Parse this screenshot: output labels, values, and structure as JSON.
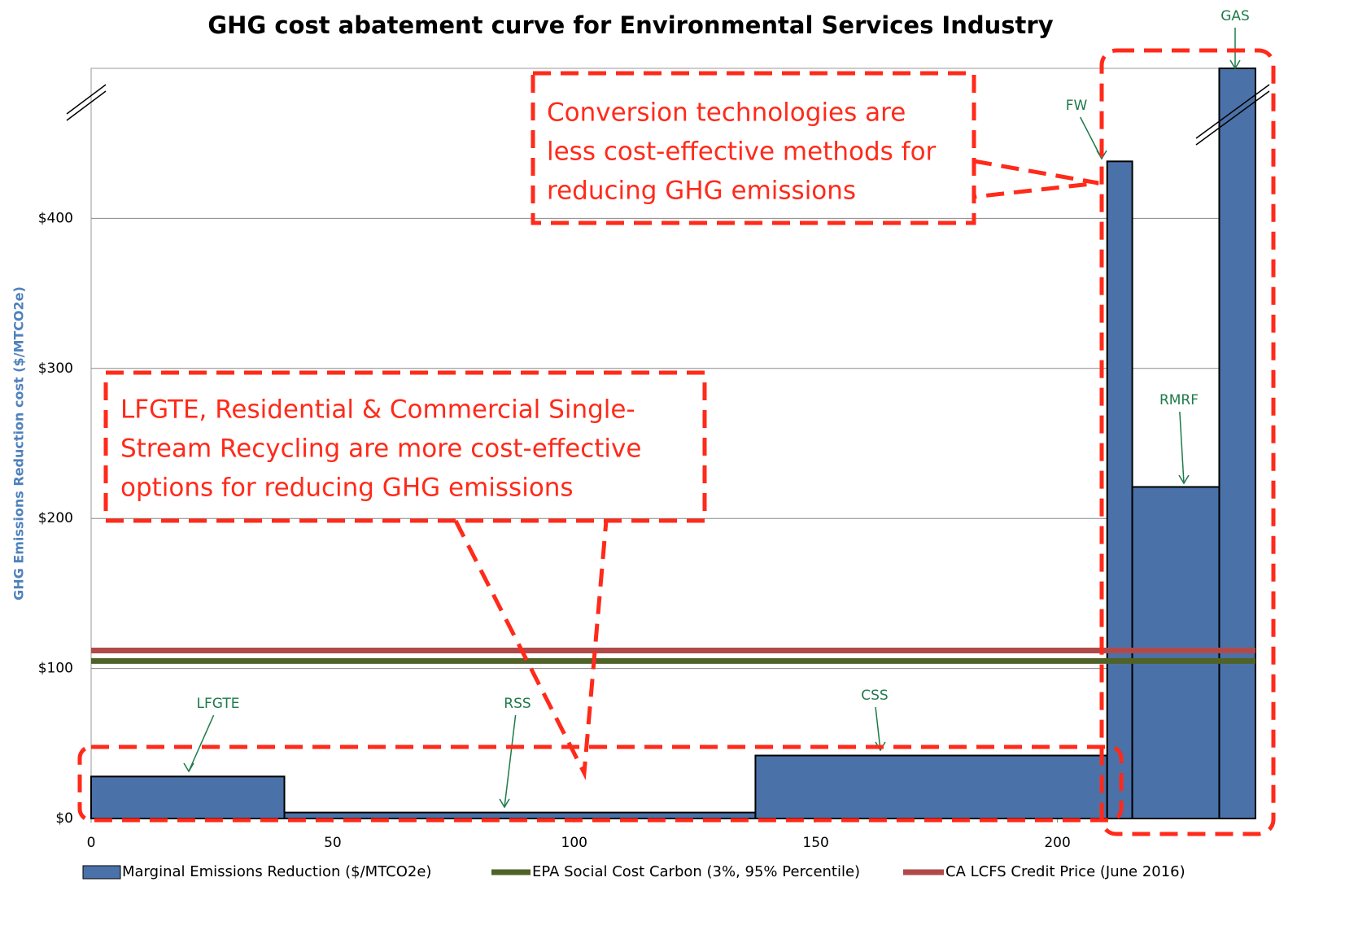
{
  "chart_data": {
    "type": "bar",
    "title": "GHG cost abatement curve for Environmental Services Industry",
    "y_label": "GHG Emissions Reduction cost ($/MTCO2e)",
    "categories": [
      "LFGTE",
      "RSS",
      "CSS",
      "FW",
      "RMRF",
      "GAS"
    ],
    "bins": [
      0,
      40,
      137.5,
      210.3,
      215.5,
      233.5,
      241
    ],
    "values": [
      28,
      4,
      42,
      438,
      221,
      500
    ],
    "series_name": "Marginal Emissions Reduction ($/MTCO2e)",
    "color": "#4a72a8",
    "reference_lines": [
      {
        "name": "EPA Social Cost Carbon (3%, 95% Percentile)",
        "color": "#4f6228",
        "value": 105
      },
      {
        "name": "CA LCFS Credit Price (June 2016)",
        "color": "#b04a4a",
        "value": 112
      }
    ],
    "xlim": [
      0,
      241
    ],
    "xticks": [
      0,
      50,
      100,
      150,
      200
    ],
    "ylim": [
      0,
      500
    ],
    "yticks": [
      {
        "value": 0,
        "label": "$0"
      },
      {
        "value": 100,
        "label": "$100"
      },
      {
        "value": 200,
        "label": "$200"
      },
      {
        "value": 300,
        "label": "$300"
      },
      {
        "value": 400,
        "label": "$400"
      }
    ],
    "grid": true,
    "annotations": [
      {
        "lines": [
          "Conversion technologies are",
          "less cost-effective methods for",
          "reducing GHG emissions"
        ]
      },
      {
        "lines": [
          "LFGTE, Residential & Commercial Single-",
          "Stream Recycling are more cost-effective",
          "options for reducing GHG emissions"
        ]
      }
    ]
  }
}
